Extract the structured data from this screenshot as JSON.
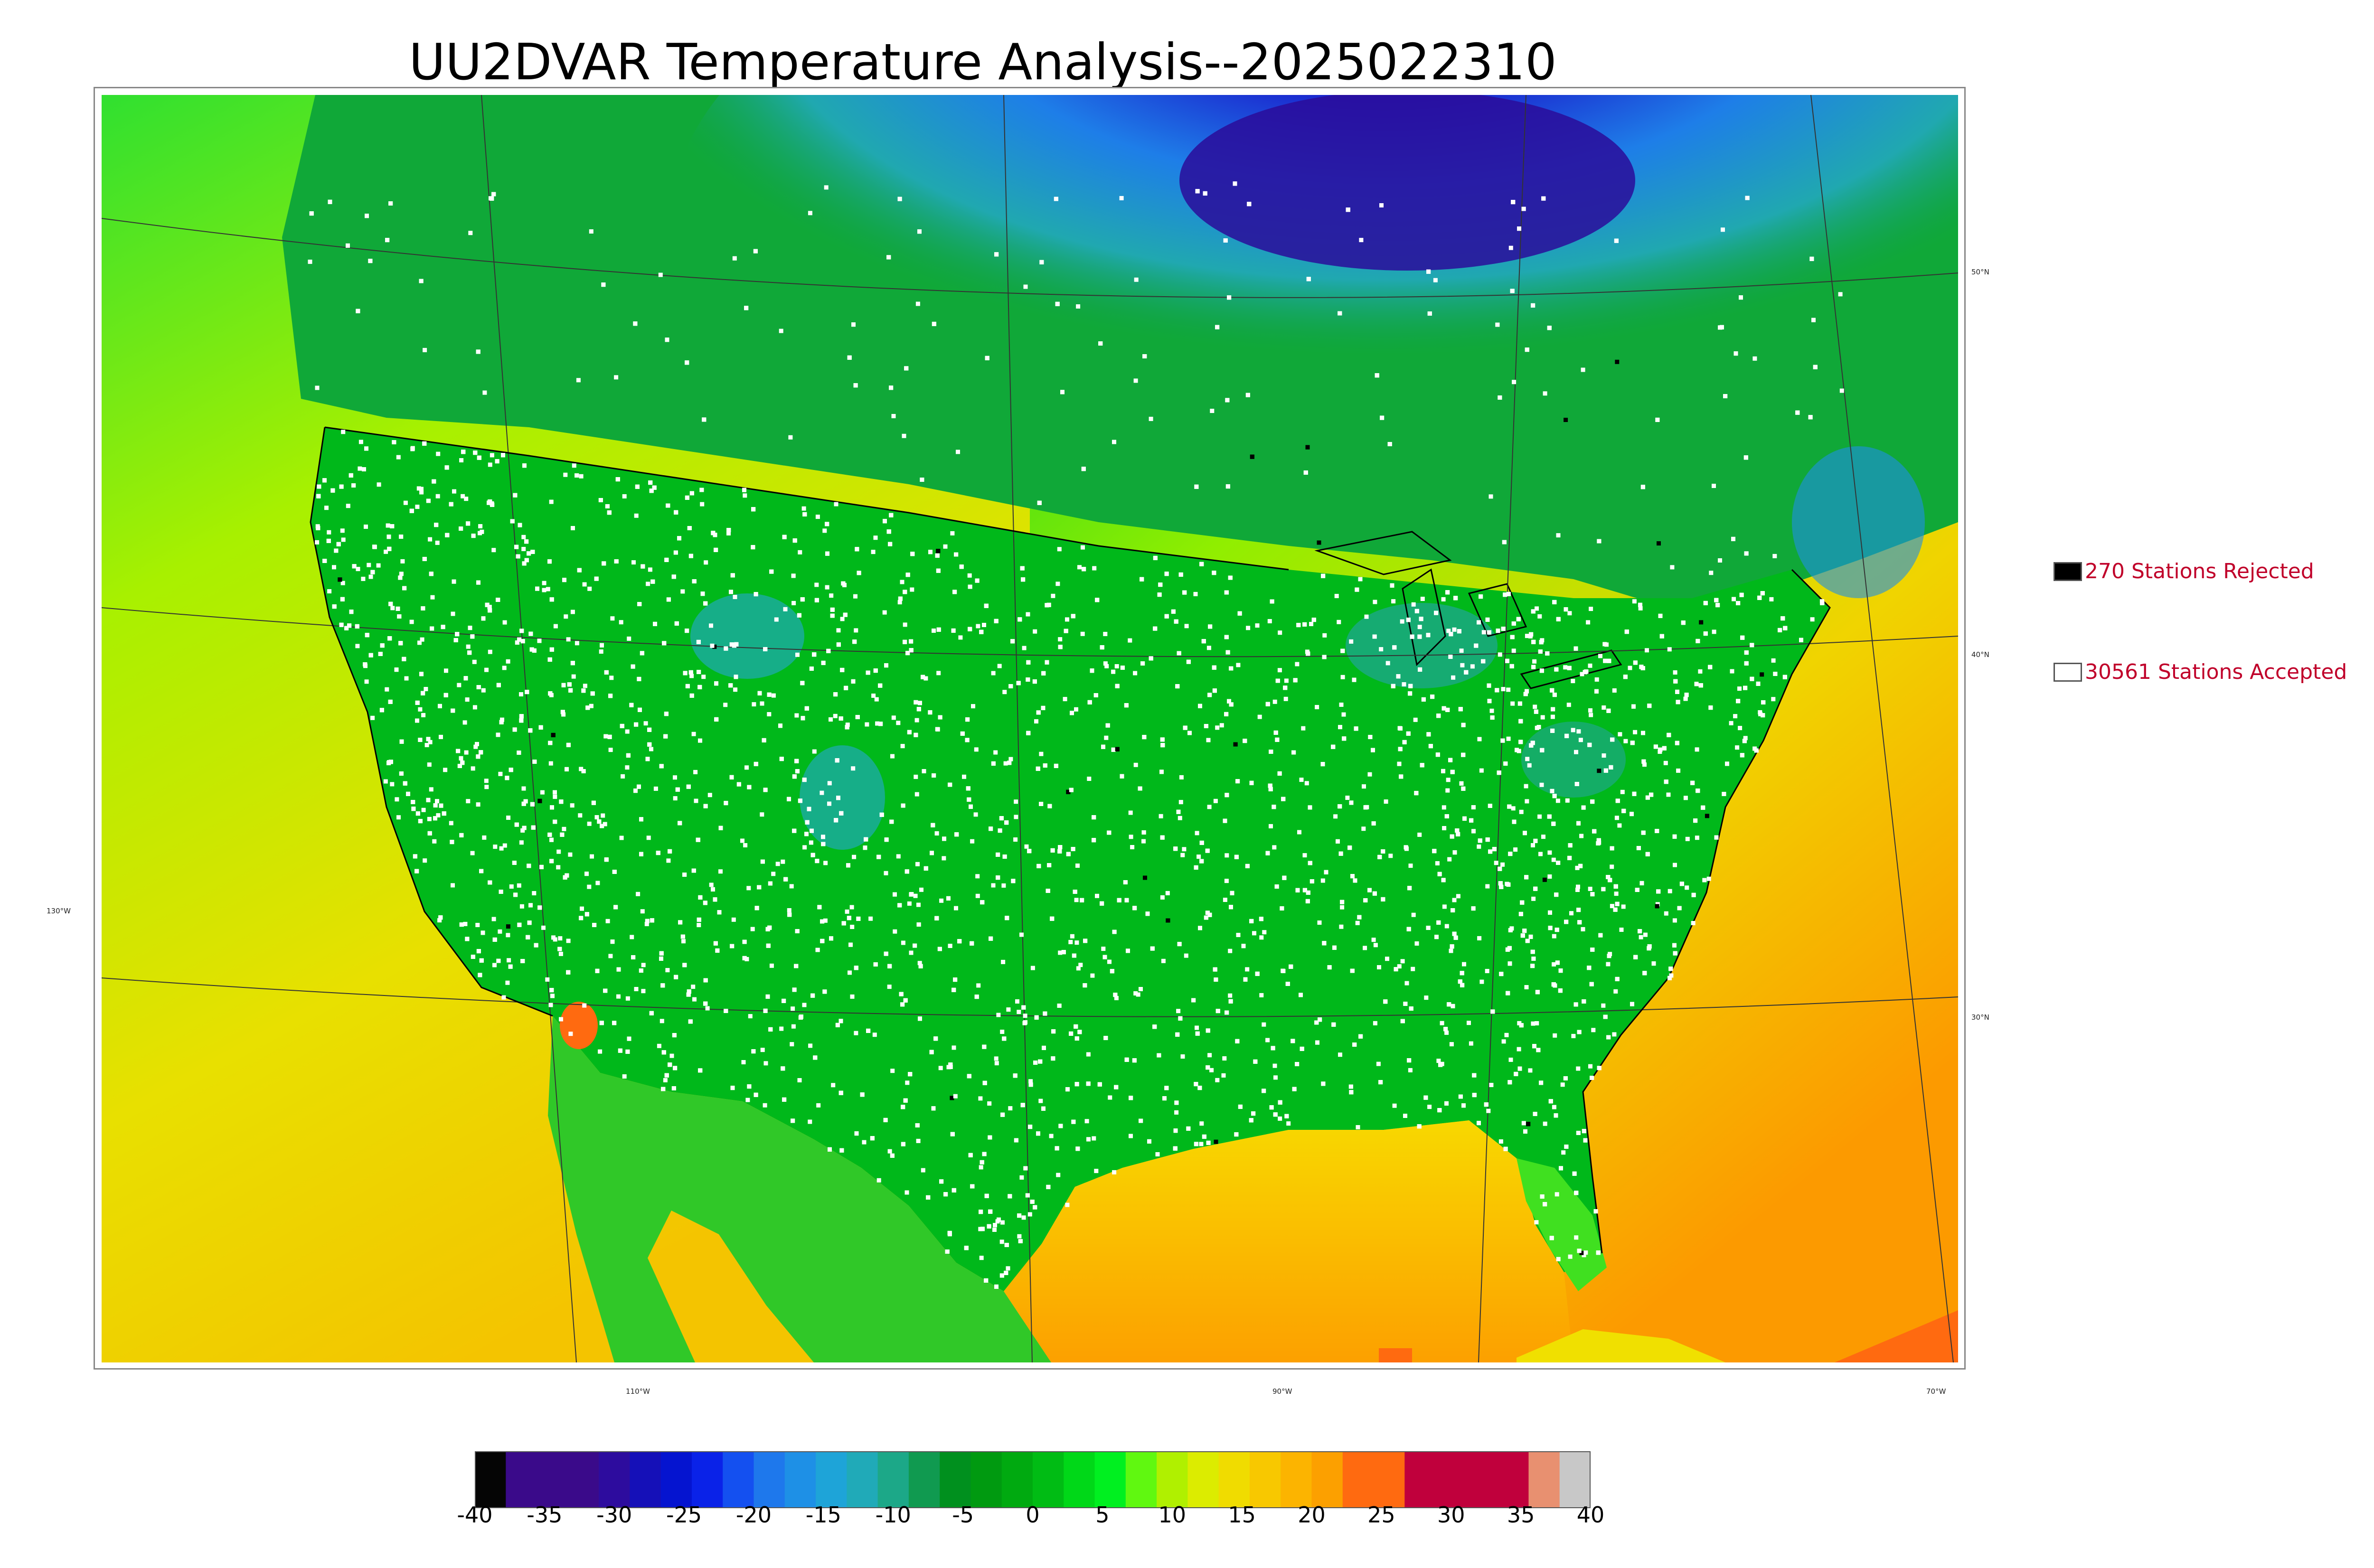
{
  "title": "UU2DVAR Temperature Analysis--2025022310",
  "map": {
    "lat_labels": [
      "50°N",
      "40°N",
      "30°N"
    ],
    "lon_labels": [
      "130°W",
      "110°W",
      "90°W",
      "70°W"
    ]
  },
  "legend": {
    "rejected": {
      "label": "270 Stations Rejected",
      "swatch_color": "#000000"
    },
    "accepted": {
      "label": "30561 Stations Accepted",
      "swatch_color": "#ffffff"
    }
  },
  "colorbar": {
    "min": -40,
    "max": 40,
    "tick_labels": [
      "-40",
      "-35",
      "-30",
      "-25",
      "-20",
      "-15",
      "-10",
      "-5",
      "0",
      "5",
      "10",
      "15",
      "20",
      "25",
      "30",
      "35",
      "40"
    ],
    "colors": [
      "#050505",
      "#3a0a8a",
      "#3a0a8a",
      "#3a0a8a",
      "#2d0c9e",
      "#1510b8",
      "#0514d0",
      "#0a22e8",
      "#1450f0",
      "#1e78ec",
      "#1e90e6",
      "#1ea4d8",
      "#20aab8",
      "#1ca888",
      "#109a50",
      "#00901e",
      "#009a10",
      "#00aa10",
      "#00bc14",
      "#00d818",
      "#00f020",
      "#60f810",
      "#b0f000",
      "#dcec00",
      "#f0dc00",
      "#f8c800",
      "#fcb400",
      "#fca000",
      "#ff6a10",
      "#ff6a10",
      "#c0003c",
      "#c0003c",
      "#c0003c",
      "#c0003c",
      "#e89070",
      "#c8c8c8"
    ],
    "title_label": ""
  },
  "colors": {
    "cold_extreme": "#3a0a8a",
    "land_mid": "#00b81a",
    "ocean_warm": "#f0d000",
    "hot": "#ff6a10",
    "station_accepted": "#ffffff",
    "station_rejected": "#000000",
    "label_red": "#c0002a"
  }
}
